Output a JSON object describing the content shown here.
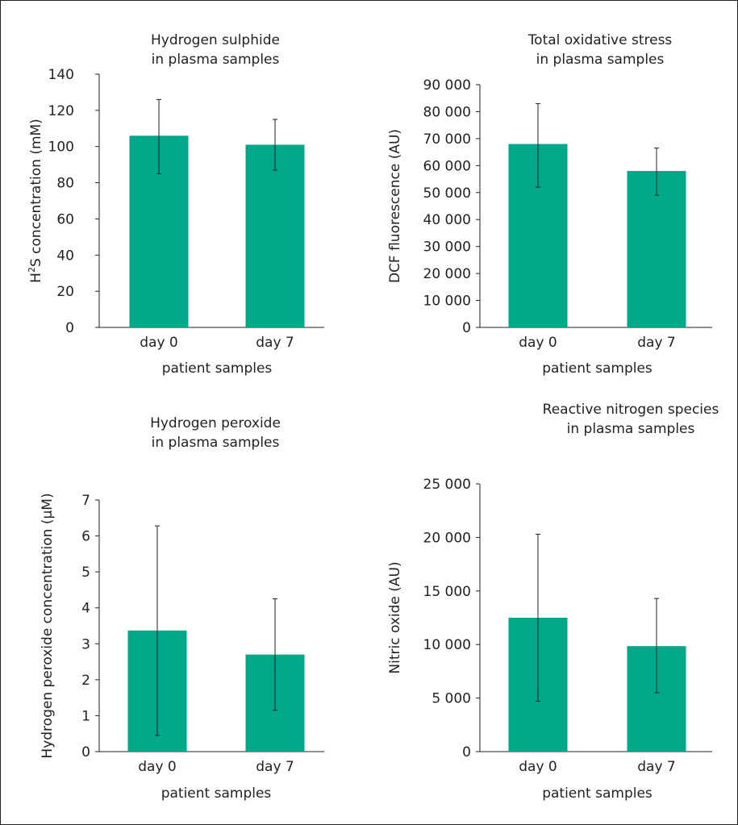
{
  "chart_data": [
    {
      "type": "bar",
      "title_lines": [
        "Hydrogen sulphide",
        "in plasma samples"
      ],
      "ylabel_parts": [
        "H",
        "2",
        "S concentration (mM)"
      ],
      "xlabel": "patient samples",
      "categories": [
        "day 0",
        "day 7"
      ],
      "values": [
        106,
        101
      ],
      "error_low": [
        85,
        87
      ],
      "error_high": [
        126,
        115
      ],
      "ylim": [
        0,
        140
      ],
      "yticks": [
        0,
        20,
        40,
        60,
        80,
        100,
        120,
        140
      ],
      "ytick_labels": [
        "0",
        "20",
        "40",
        "60",
        "80",
        "100",
        "120",
        "140"
      ],
      "bar_color": "#00a88a",
      "grid": false
    },
    {
      "type": "bar",
      "title_lines": [
        "Total oxidative stress",
        "in plasma samples"
      ],
      "ylabel": "DCF fluorescence (AU)",
      "xlabel": "patient samples",
      "categories": [
        "day 0",
        "day 7"
      ],
      "values": [
        68000,
        58000
      ],
      "error_low": [
        52000,
        49000
      ],
      "error_high": [
        83000,
        66500
      ],
      "ylim": [
        0,
        90000
      ],
      "yticks": [
        0,
        10000,
        20000,
        30000,
        40000,
        50000,
        60000,
        70000,
        80000,
        90000
      ],
      "ytick_labels": [
        "0",
        "10 000",
        "20 000",
        "30 000",
        "40 000",
        "50 000",
        "60 000",
        "70 000",
        "80 000",
        "90 000"
      ],
      "bar_color": "#00a88a",
      "grid": false
    },
    {
      "type": "bar",
      "title_lines": [
        "Hydrogen peroxide",
        "in plasma samples"
      ],
      "ylabel": "Hydrogen peroxide concentration (μM)",
      "xlabel": "patient samples",
      "categories": [
        "day 0",
        "day 7"
      ],
      "values": [
        3.37,
        2.7
      ],
      "error_low": [
        0.45,
        1.15
      ],
      "error_high": [
        6.28,
        4.25
      ],
      "ylim": [
        0,
        7
      ],
      "yticks": [
        0,
        1,
        2,
        3,
        4,
        5,
        6,
        7
      ],
      "ytick_labels": [
        "0",
        "1",
        "2",
        "3",
        "4",
        "5",
        "6",
        "7"
      ],
      "bar_color": "#00a88a",
      "grid": false
    },
    {
      "type": "bar",
      "title_lines": [
        "Reactive nitrogen species",
        "in plasma samples"
      ],
      "ylabel": "Nitric oxide (AU)",
      "xlabel": "patient samples",
      "categories": [
        "day 0",
        "day 7"
      ],
      "values": [
        12500,
        9850
      ],
      "error_low": [
        4700,
        5500
      ],
      "error_high": [
        20300,
        14300
      ],
      "ylim": [
        0,
        25000
      ],
      "yticks": [
        0,
        5000,
        10000,
        15000,
        20000,
        25000
      ],
      "ytick_labels": [
        "0",
        "5 000",
        "10 000",
        "15 000",
        "20 000",
        "25 000"
      ],
      "bar_color": "#00a88a",
      "grid": false
    }
  ]
}
